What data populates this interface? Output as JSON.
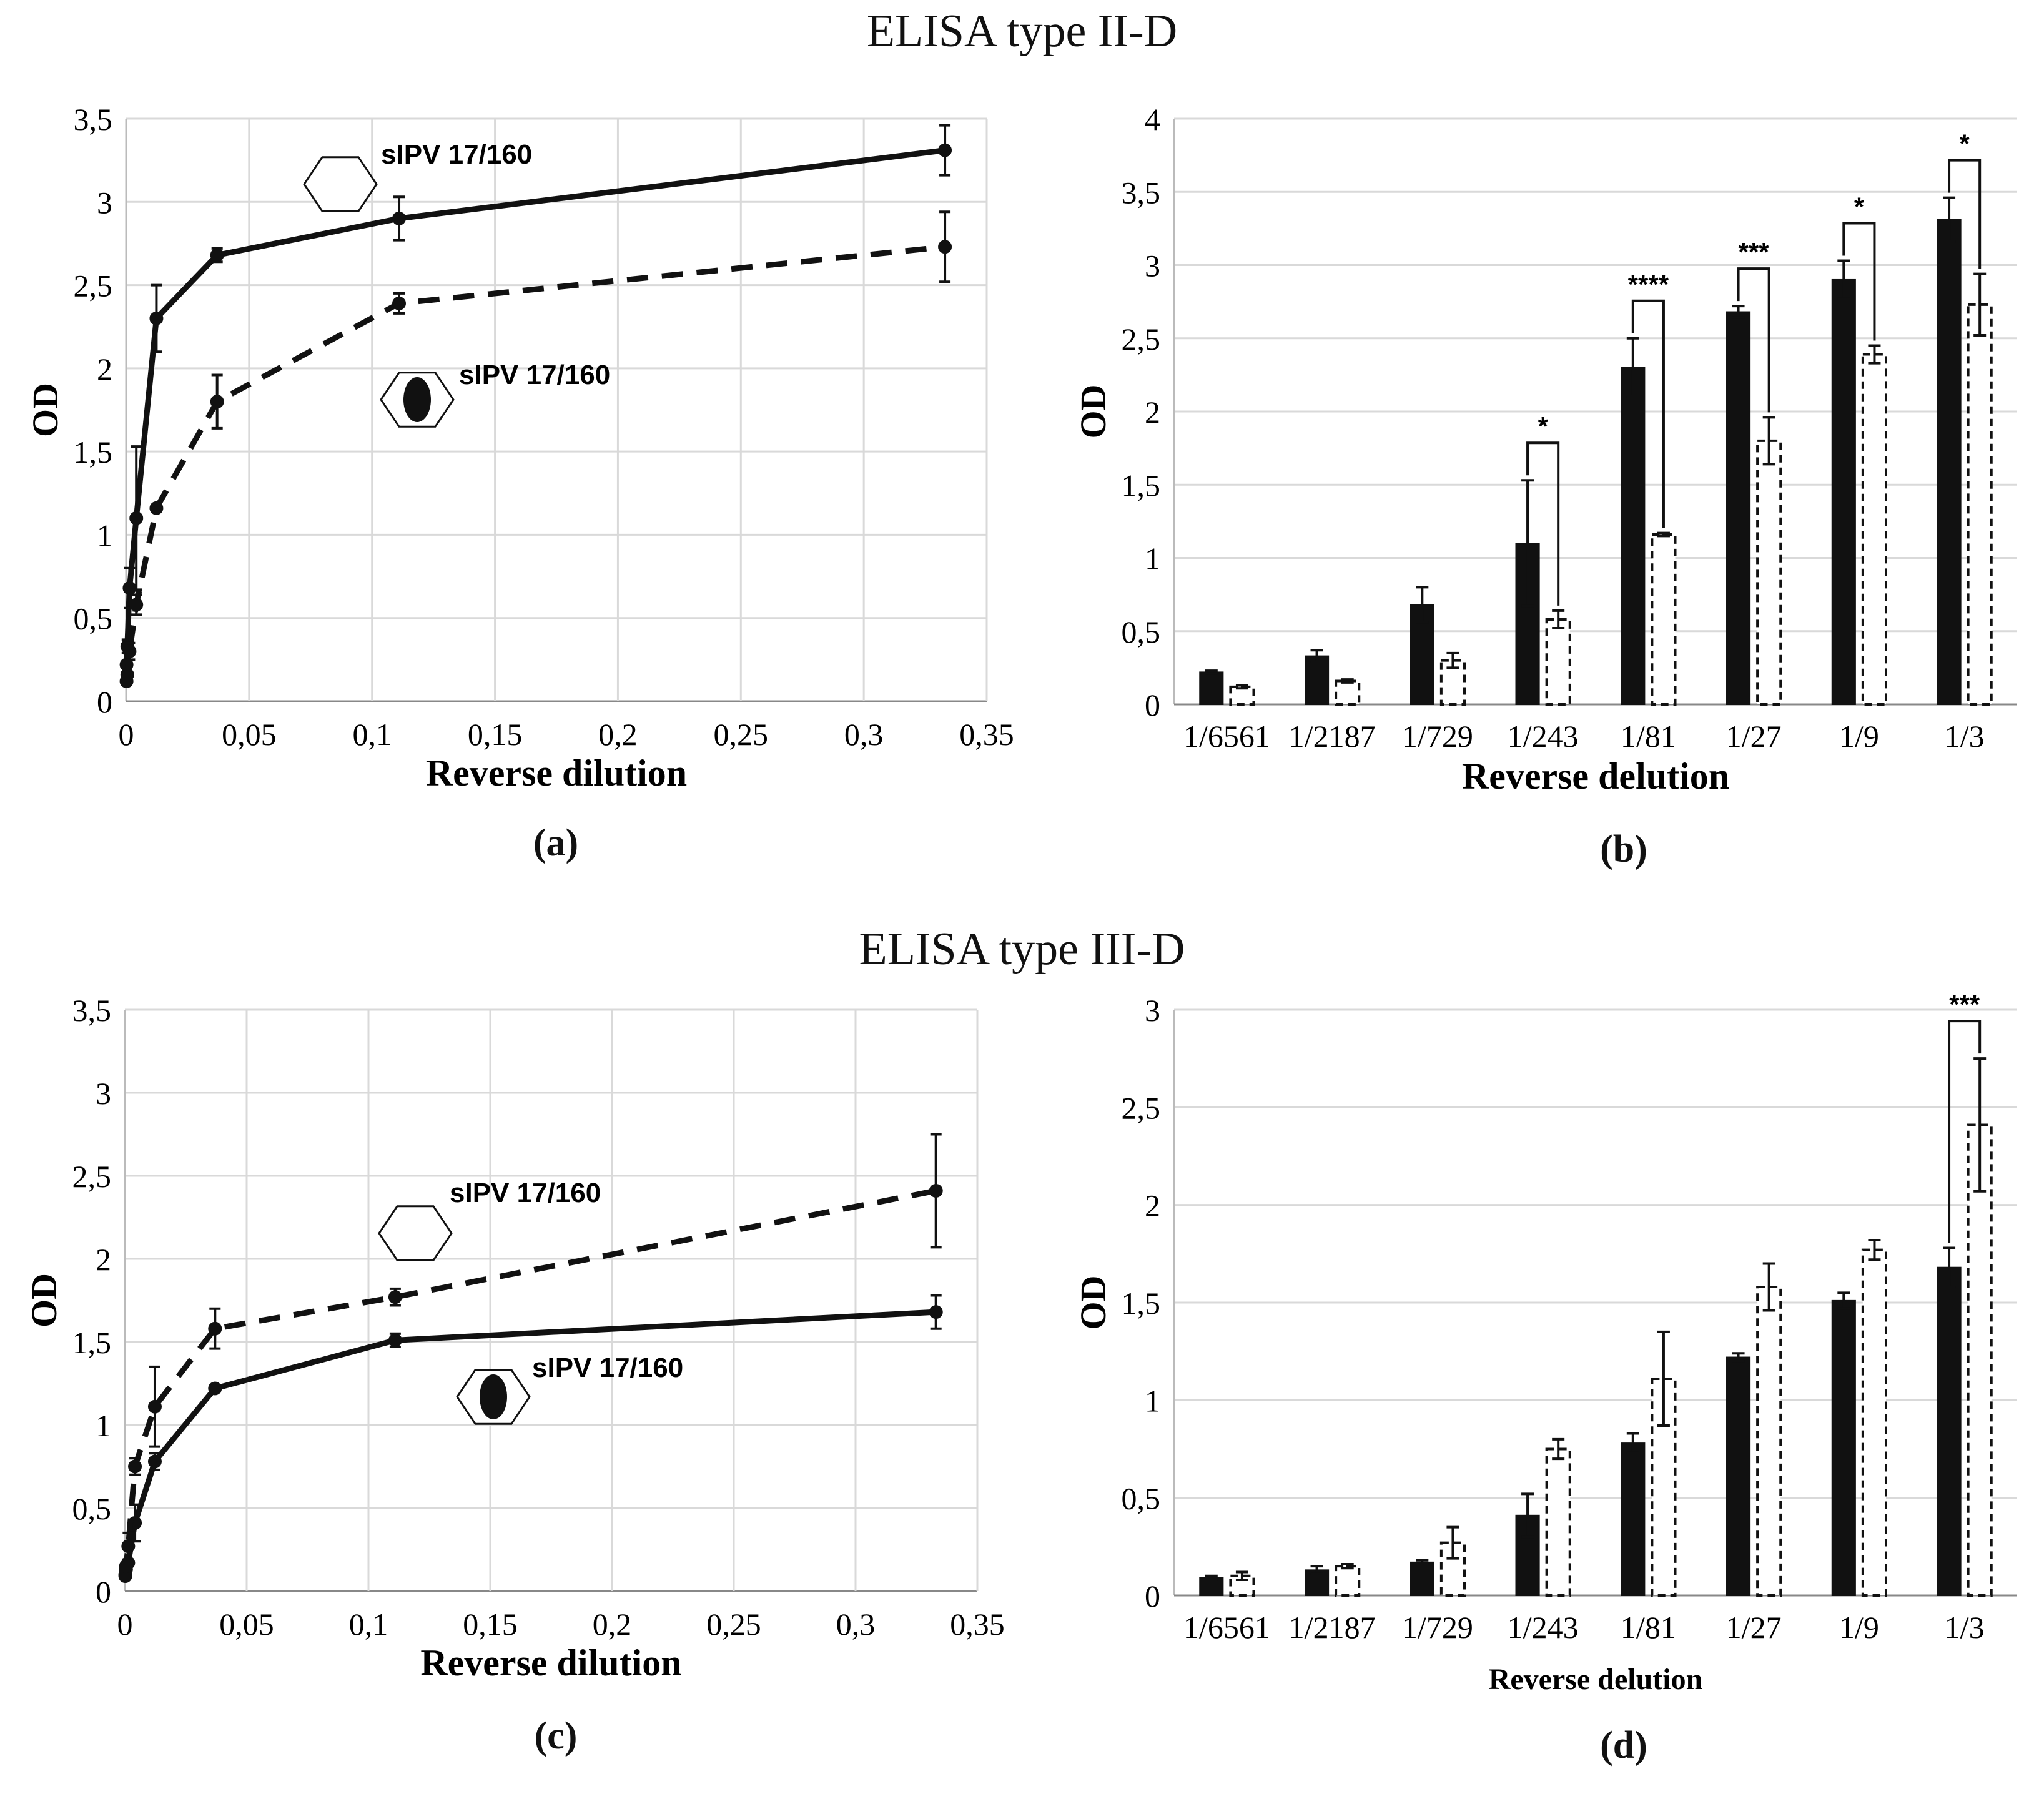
{
  "titles": {
    "top": "ELISA type II-D",
    "bottom": "ELISA type III-D"
  },
  "panel_labels": [
    "(a)",
    "(b)",
    "(c)",
    "(d)"
  ],
  "series_label": "sIPV 17/160",
  "chart_data": [
    {
      "id": "a",
      "type": "line",
      "xlabel": "Reverse dilution",
      "ylabel": "OD",
      "xlim": [
        0,
        0.35
      ],
      "ylim": [
        0,
        3.5
      ],
      "xticks": [
        "0",
        "0,05",
        "0,1",
        "0,15",
        "0,2",
        "0,25",
        "0,3",
        "0,35"
      ],
      "yticks": [
        "0",
        "0,5",
        "1",
        "1,5",
        "2",
        "2,5",
        "3",
        "3,5"
      ],
      "grid": true,
      "x": [
        0.000152,
        0.000457,
        0.00137,
        0.00412,
        0.0123,
        0.037,
        0.111,
        0.333
      ],
      "series": [
        {
          "name": "sIPV 17/160",
          "style": "solid",
          "marker": "empty-hexagon",
          "values": [
            0.22,
            0.33,
            0.68,
            1.1,
            2.3,
            2.68,
            2.9,
            3.31
          ],
          "errors": [
            0.01,
            0.04,
            0.12,
            0.43,
            0.2,
            0.04,
            0.13,
            0.15
          ]
        },
        {
          "name": "sIPV 17/160",
          "style": "dashed",
          "marker": "filled-hexagon",
          "values": [
            0.12,
            0.16,
            0.3,
            0.58,
            1.16,
            1.8,
            2.39,
            2.73
          ],
          "errors": [
            0.01,
            0.01,
            0.05,
            0.06,
            0.01,
            0.16,
            0.06,
            0.21
          ]
        }
      ]
    },
    {
      "id": "b",
      "type": "bar",
      "xlabel": "Reverse delution",
      "ylabel": "OD",
      "ylim": [
        0,
        4
      ],
      "yticks": [
        "0",
        "0,5",
        "1",
        "1,5",
        "2",
        "2,5",
        "3",
        "3,5",
        "4"
      ],
      "grid": true,
      "categories": [
        "1/6561",
        "1/2187",
        "1/729",
        "1/243",
        "1/81",
        "1/27",
        "1/9",
        "1/3"
      ],
      "series": [
        {
          "name": "sIPV 17/160",
          "style": "solid-filled",
          "values": [
            0.22,
            0.33,
            0.68,
            1.1,
            2.3,
            2.68,
            2.9,
            3.31
          ],
          "errors": [
            0.01,
            0.04,
            0.12,
            0.43,
            0.2,
            0.04,
            0.13,
            0.15
          ]
        },
        {
          "name": "sIPV 17/160",
          "style": "dashed-empty",
          "values": [
            0.12,
            0.16,
            0.3,
            0.58,
            1.16,
            1.8,
            2.39,
            2.73
          ],
          "errors": [
            0.01,
            0.01,
            0.05,
            0.06,
            0.01,
            0.16,
            0.06,
            0.21
          ]
        }
      ],
      "significance": [
        {
          "category": "1/243",
          "label": "*"
        },
        {
          "category": "1/81",
          "label": "****"
        },
        {
          "category": "1/27",
          "label": "***"
        },
        {
          "category": "1/9",
          "label": "*"
        },
        {
          "category": "1/3",
          "label": "*"
        }
      ]
    },
    {
      "id": "c",
      "type": "line",
      "xlabel": "Reverse dilution",
      "ylabel": "OD",
      "xlim": [
        0,
        0.35
      ],
      "ylim": [
        0,
        3.5
      ],
      "xticks": [
        "0",
        "0,05",
        "0,1",
        "0,15",
        "0,2",
        "0,25",
        "0,3",
        "0,35"
      ],
      "yticks": [
        "0",
        "0,5",
        "1",
        "1,5",
        "2",
        "2,5",
        "3",
        "3,5"
      ],
      "grid": true,
      "x": [
        0.000152,
        0.000457,
        0.00137,
        0.00412,
        0.0123,
        0.037,
        0.111,
        0.333
      ],
      "series": [
        {
          "name": "sIPV 17/160",
          "style": "solid",
          "marker": "empty-hexagon",
          "values": [
            0.09,
            0.13,
            0.17,
            0.41,
            0.78,
            1.22,
            1.51,
            1.68
          ],
          "errors": [
            0.01,
            0.02,
            0.01,
            0.11,
            0.05,
            0.02,
            0.04,
            0.1
          ]
        },
        {
          "name": "sIPV 17/160",
          "style": "dashed",
          "marker": "filled-hexagon",
          "values": [
            0.1,
            0.15,
            0.27,
            0.75,
            1.11,
            1.58,
            1.77,
            2.41
          ],
          "errors": [
            0.02,
            0.01,
            0.08,
            0.05,
            0.24,
            0.12,
            0.05,
            0.34
          ]
        }
      ]
    },
    {
      "id": "d",
      "type": "bar",
      "xlabel": "Reverse delution",
      "ylabel": "OD",
      "ylim": [
        0,
        3
      ],
      "yticks": [
        "0",
        "0,5",
        "1",
        "1,5",
        "2",
        "2,5",
        "3"
      ],
      "grid": true,
      "categories": [
        "1/6561",
        "1/2187",
        "1/729",
        "1/243",
        "1/81",
        "1/27",
        "1/9",
        "1/3"
      ],
      "series": [
        {
          "name": "sIPV 17/160",
          "style": "solid-filled",
          "values": [
            0.09,
            0.13,
            0.17,
            0.41,
            0.78,
            1.22,
            1.51,
            1.68
          ],
          "errors": [
            0.01,
            0.02,
            0.01,
            0.11,
            0.05,
            0.02,
            0.04,
            0.1
          ]
        },
        {
          "name": "sIPV 17/160",
          "style": "dashed-empty",
          "values": [
            0.1,
            0.15,
            0.27,
            0.75,
            1.11,
            1.58,
            1.77,
            2.41
          ],
          "errors": [
            0.02,
            0.01,
            0.08,
            0.05,
            0.24,
            0.12,
            0.05,
            0.34
          ]
        }
      ],
      "significance": [
        {
          "category": "1/3",
          "label": "***"
        }
      ]
    }
  ]
}
